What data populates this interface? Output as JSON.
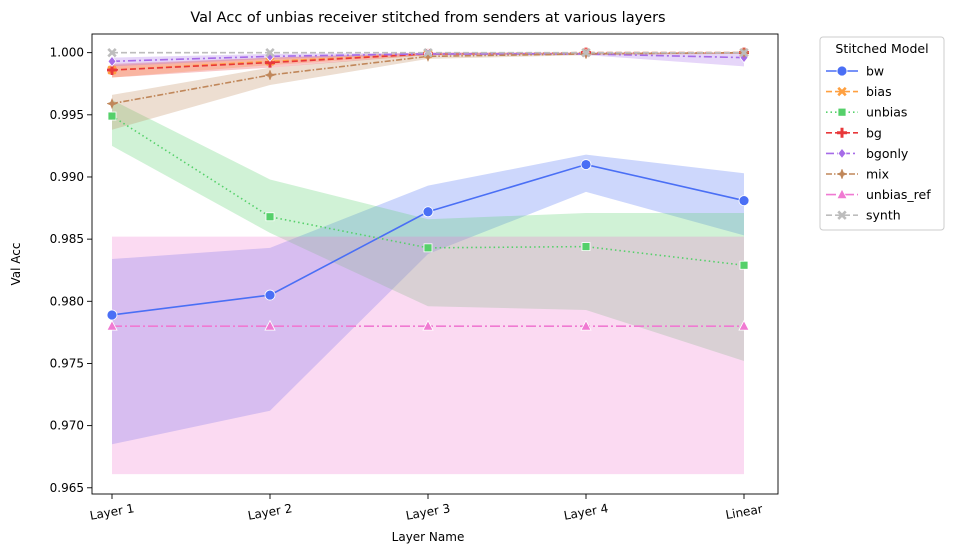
{
  "chart_data": {
    "type": "line",
    "title": "Val Acc of unbias receiver stitched from senders at various layers",
    "xlabel": "Layer Name",
    "ylabel": "Val Acc",
    "categories": [
      "Layer 1",
      "Layer 2",
      "Layer 3",
      "Layer 4",
      "Linear"
    ],
    "ylim": [
      0.9645,
      1.0015
    ],
    "yticks": [
      "0.965",
      "0.970",
      "0.975",
      "0.980",
      "0.985",
      "0.990",
      "0.995",
      "1.000"
    ],
    "ytick_values": [
      0.965,
      0.97,
      0.975,
      0.98,
      0.985,
      0.99,
      0.995,
      1.0
    ],
    "grid": false,
    "legend": {
      "title": "Stitched Model",
      "placement": "outside-top-right"
    },
    "series": [
      {
        "name": "bw",
        "color": "#4a6ff5",
        "marker": "circle",
        "dash": "",
        "values": [
          0.9789,
          0.9805,
          0.9872,
          0.991,
          0.9881
        ],
        "lower": [
          0.9685,
          0.9712,
          0.9838,
          0.9888,
          0.9853
        ],
        "upper": [
          0.9834,
          0.9843,
          0.9893,
          0.9918,
          0.9903
        ]
      },
      {
        "name": "bias",
        "color": "#ffa040",
        "marker": "x",
        "dash": "6,3",
        "values": [
          0.9986,
          0.9993,
          0.9999,
          1.0,
          1.0
        ],
        "lower": [
          0.998,
          0.999,
          0.9998,
          0.9999,
          0.9999
        ],
        "upper": [
          0.999,
          0.9996,
          1.0,
          1.0,
          1.0
        ]
      },
      {
        "name": "unbias",
        "color": "#55d06a",
        "marker": "square",
        "dash": "1.5,3",
        "values": [
          0.9949,
          0.9868,
          0.9843,
          0.9844,
          0.9829
        ],
        "lower": [
          0.9925,
          0.9855,
          0.9796,
          0.9793,
          0.9752
        ],
        "upper": [
          0.9962,
          0.9898,
          0.9866,
          0.9871,
          0.9871
        ]
      },
      {
        "name": "bg",
        "color": "#e8383a",
        "marker": "plus",
        "dash": "6,3",
        "values": [
          0.9986,
          0.9992,
          0.9999,
          1.0,
          1.0
        ],
        "lower": [
          0.998,
          0.9988,
          0.9998,
          0.9999,
          0.9999
        ],
        "upper": [
          0.9991,
          0.9996,
          1.0,
          1.0,
          1.0
        ]
      },
      {
        "name": "bgonly",
        "color": "#a66be8",
        "marker": "diamond",
        "dash": "8,3,2,3",
        "values": [
          0.9993,
          0.9997,
          0.9999,
          0.9999,
          0.9996
        ],
        "lower": [
          0.9989,
          0.9995,
          0.9998,
          0.9998,
          0.9989
        ],
        "upper": [
          0.9996,
          0.9999,
          1.0,
          1.0,
          1.0
        ]
      },
      {
        "name": "mix",
        "color": "#c0875a",
        "marker": "star",
        "dash": "6,2,1.5,2",
        "values": [
          0.9959,
          0.9982,
          0.9997,
          0.9999,
          1.0
        ],
        "lower": [
          0.9938,
          0.9974,
          0.9995,
          0.9998,
          0.9999
        ],
        "upper": [
          0.9966,
          0.9988,
          0.9999,
          1.0,
          1.0
        ]
      },
      {
        "name": "unbias_ref",
        "color": "#f07ad2",
        "marker": "triangle",
        "dash": "10,3,2,3",
        "values": [
          0.978,
          0.978,
          0.978,
          0.978,
          0.978
        ],
        "lower": [
          0.9661,
          0.9661,
          0.9661,
          0.9661,
          0.9661
        ],
        "upper": [
          0.9852,
          0.9852,
          0.9852,
          0.9852,
          0.9852
        ]
      },
      {
        "name": "synth",
        "color": "#bdbdbd",
        "marker": "x",
        "dash": "6,3",
        "values": [
          1.0,
          1.0,
          1.0,
          1.0,
          1.0
        ]
      }
    ]
  }
}
